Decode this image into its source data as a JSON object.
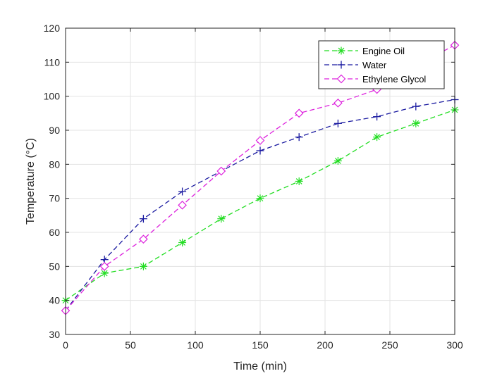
{
  "chart_data": {
    "type": "line",
    "title": "",
    "xlabel": "Time (min)",
    "ylabel": "Temperature (°C)",
    "xlim": [
      0,
      300
    ],
    "ylim": [
      30,
      120
    ],
    "xticks": [
      0,
      50,
      100,
      150,
      200,
      250,
      300
    ],
    "yticks": [
      30,
      40,
      50,
      60,
      70,
      80,
      90,
      100,
      110,
      120
    ],
    "grid": true,
    "legend_position": "top-right",
    "series": [
      {
        "name": "Engine Oil",
        "color": "#22dd22",
        "marker": "asterisk",
        "x": [
          0,
          30,
          60,
          90,
          120,
          150,
          180,
          210,
          240,
          270,
          300
        ],
        "y": [
          40,
          48,
          50,
          57,
          64,
          70,
          75,
          81,
          88,
          92,
          96
        ]
      },
      {
        "name": "Water",
        "color": "#1a1aa0",
        "marker": "plus",
        "x": [
          0,
          30,
          60,
          90,
          120,
          150,
          180,
          210,
          240,
          270,
          300
        ],
        "y": [
          37,
          52,
          64,
          72,
          78,
          84,
          88,
          92,
          94,
          97,
          99
        ]
      },
      {
        "name": "Ethylene Glycol",
        "color": "#dd22dd",
        "marker": "diamond",
        "x": [
          0,
          30,
          60,
          90,
          120,
          150,
          180,
          210,
          240,
          270,
          300
        ],
        "y": [
          37,
          50,
          58,
          68,
          78,
          87,
          95,
          98,
          102,
          109,
          115
        ]
      }
    ]
  }
}
